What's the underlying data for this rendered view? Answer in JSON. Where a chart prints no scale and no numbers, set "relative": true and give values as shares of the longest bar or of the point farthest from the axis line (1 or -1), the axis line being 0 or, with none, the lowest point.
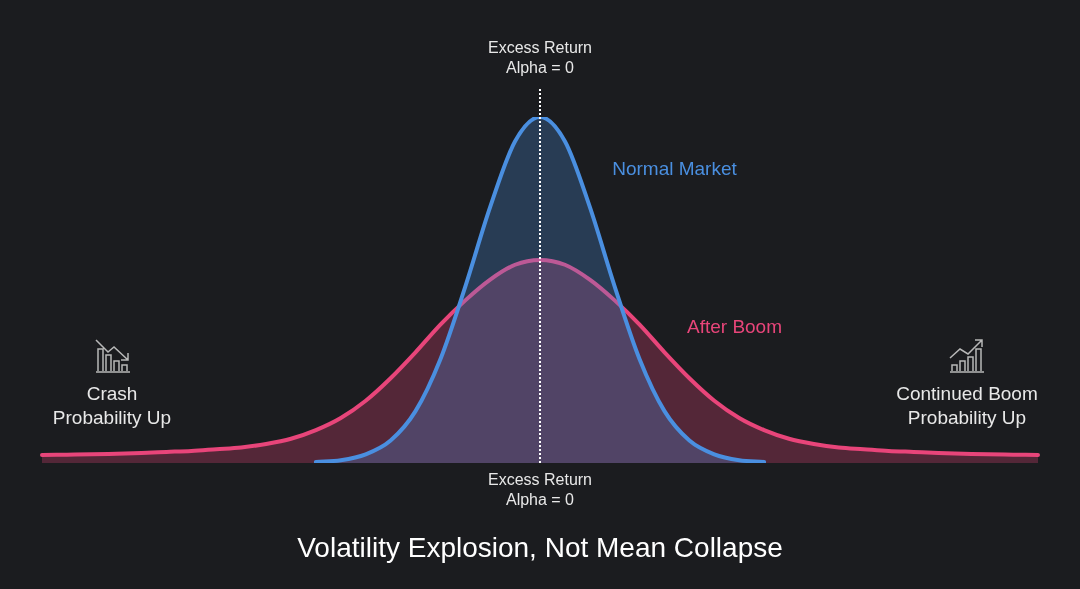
{
  "chart_data": {
    "type": "area",
    "title": "Volatility Explosion, Not Mean Collapse",
    "relative": true,
    "legend": false,
    "marker": "none",
    "tick_labels": false,
    "categories": [
      null,
      null,
      null,
      null,
      null,
      null,
      null,
      null,
      null,
      null,
      null,
      null,
      null,
      null,
      null,
      null,
      null,
      null,
      null,
      null,
      null,
      null,
      null,
      null,
      null,
      null,
      null,
      null,
      null,
      null,
      null,
      null,
      null,
      null,
      null,
      null,
      null,
      null,
      null,
      null,
      null
    ],
    "series": [
      {
        "name": "Normal Market",
        "color": "#4a8fe0",
        "values": [
          null,
          null,
          null,
          null,
          null,
          null,
          null,
          null,
          null,
          null,
          null,
          0.003,
          0.008,
          0.025,
          0.065,
          0.15,
          0.3,
          0.51,
          0.74,
          0.93,
          1.0,
          0.93,
          0.74,
          0.51,
          0.3,
          0.15,
          0.065,
          0.025,
          0.008,
          0.003,
          null,
          null,
          null,
          null,
          null,
          null,
          null,
          null,
          null,
          null,
          null
        ]
      },
      {
        "name": "After Boom",
        "color": "#e8457a",
        "values": [
          0.023,
          0.024,
          0.025,
          0.027,
          0.029,
          0.032,
          0.035,
          0.04,
          0.045,
          0.055,
          0.07,
          0.095,
          0.13,
          0.18,
          0.245,
          0.32,
          0.4,
          0.47,
          0.53,
          0.573,
          0.587,
          0.573,
          0.53,
          0.47,
          0.4,
          0.32,
          0.245,
          0.18,
          0.13,
          0.095,
          0.07,
          0.055,
          0.045,
          0.04,
          0.035,
          0.032,
          0.029,
          0.027,
          0.025,
          0.024,
          0.023
        ]
      }
    ],
    "annotations": [
      "Excess Return\nAlpha = 0",
      "Excess Return\nAlpha = 0",
      "Crash\nProbability Up",
      "Continued Boom\nProbability Up"
    ]
  }
}
